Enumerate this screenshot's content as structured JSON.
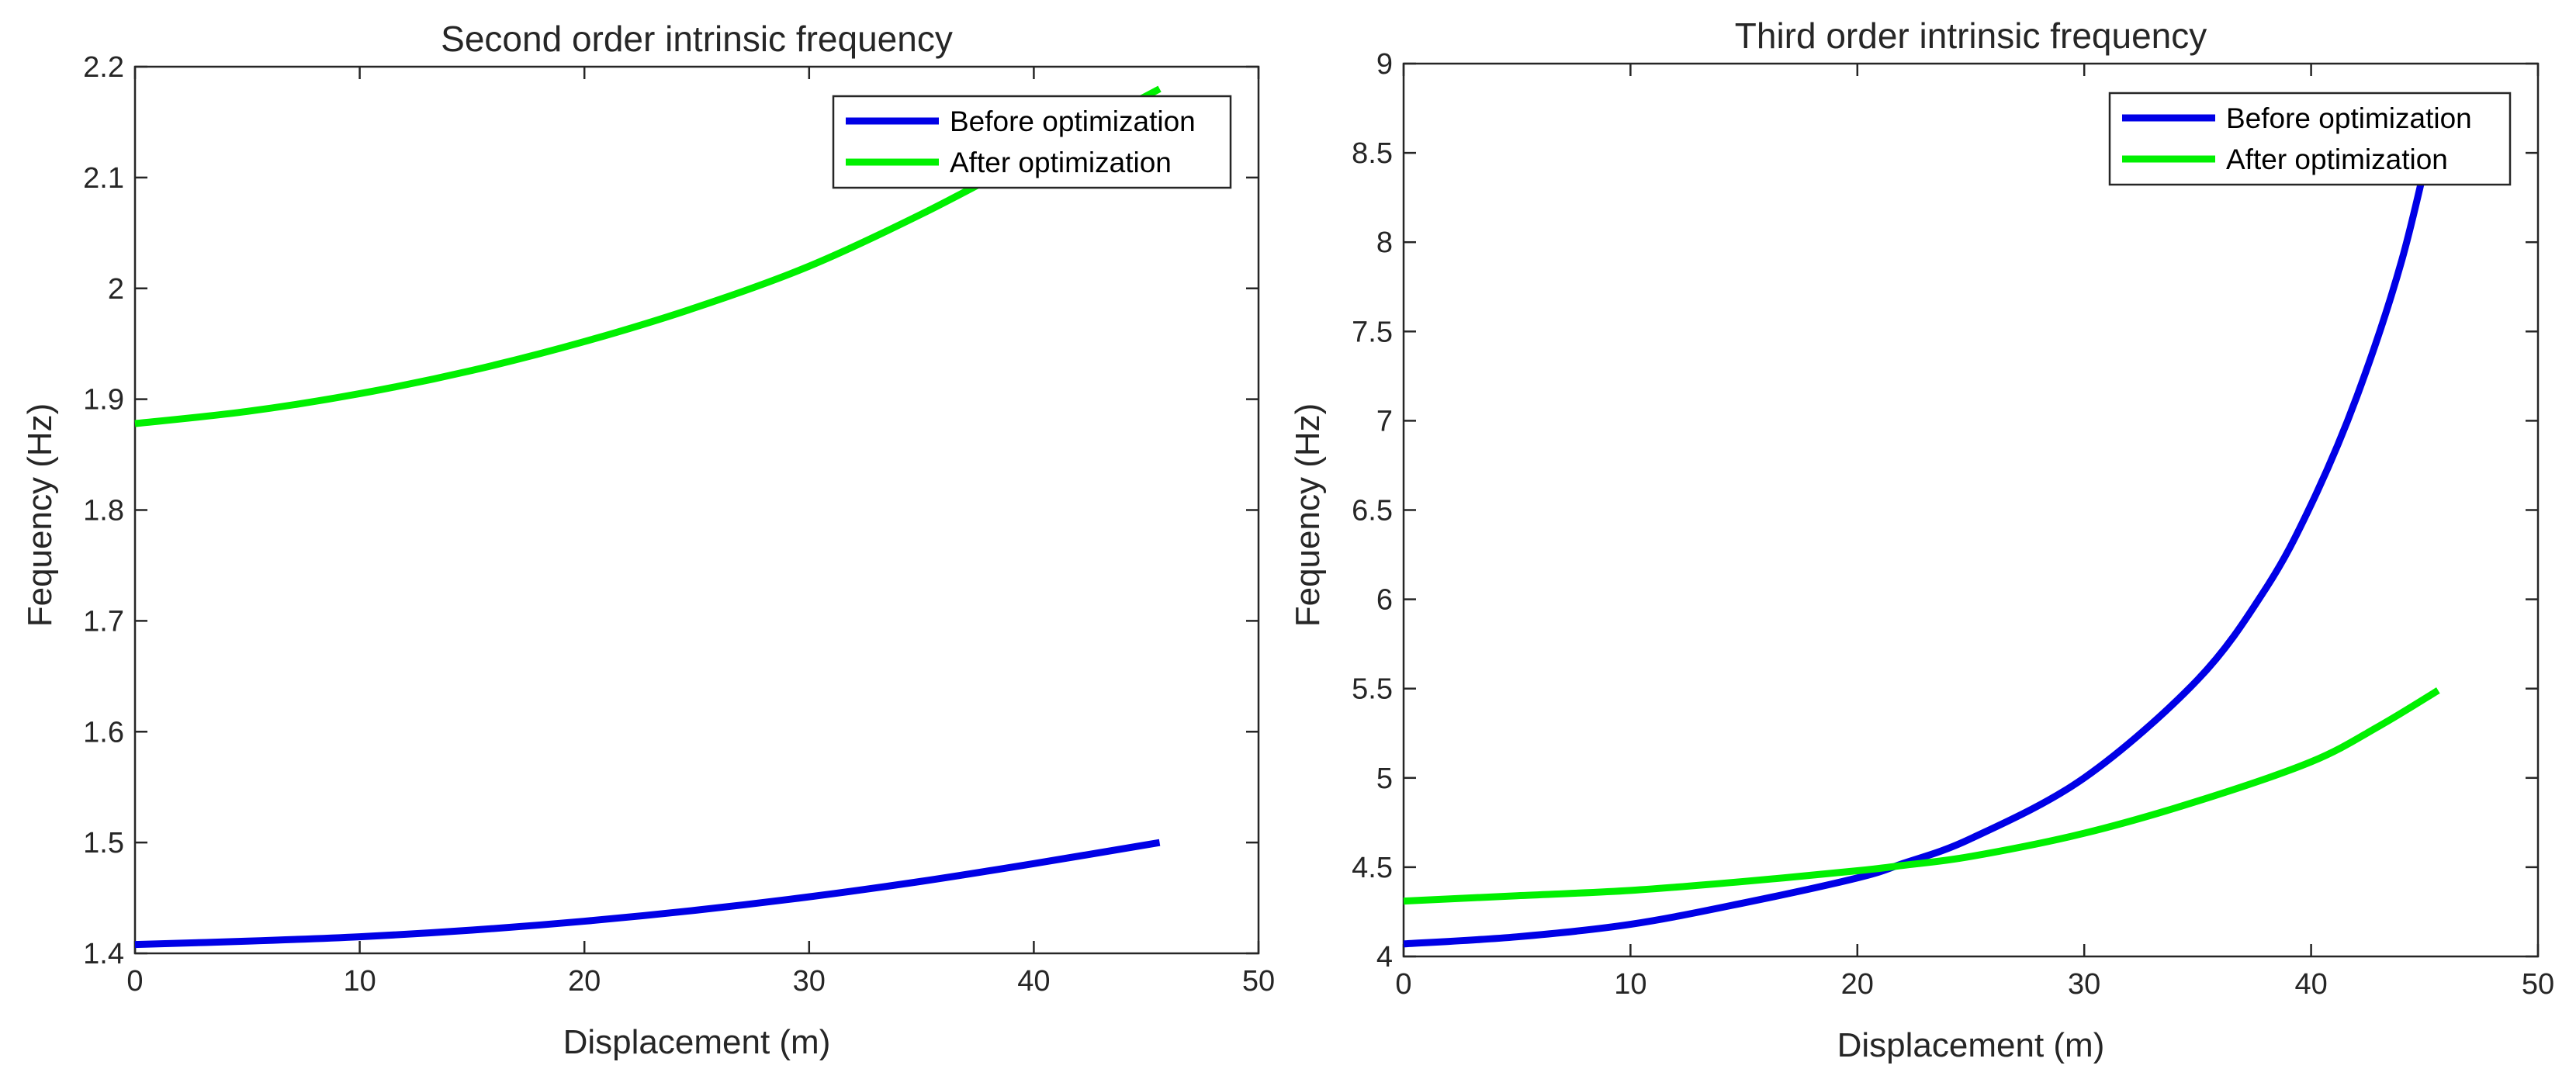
{
  "chart_data": [
    {
      "type": "line",
      "title": "Second order intrinsic frequency",
      "xlabel": "Displacement (m)",
      "ylabel": "Fequency (Hz)",
      "xlim": [
        0,
        50
      ],
      "ylim": [
        1.4,
        2.2
      ],
      "xticks": [
        "0",
        "10",
        "20",
        "30",
        "40",
        "50"
      ],
      "yticks": [
        "1.4",
        "1.5",
        "1.6",
        "1.7",
        "1.8",
        "1.9",
        "2",
        "2.1",
        "2.2"
      ],
      "legend_position": "top-right",
      "series": [
        {
          "name": "Before optimization",
          "color": "#0000e6",
          "x": [
            0,
            5,
            10,
            15,
            20,
            25,
            30,
            35,
            40,
            45.6
          ],
          "y": [
            1.408,
            1.411,
            1.415,
            1.421,
            1.429,
            1.439,
            1.451,
            1.465,
            1.481,
            1.5
          ]
        },
        {
          "name": "After optimization",
          "color": "#00f000",
          "x": [
            0,
            5,
            10,
            15,
            20,
            25,
            30,
            35,
            40,
            45.6
          ],
          "y": [
            1.878,
            1.889,
            1.905,
            1.926,
            1.952,
            1.983,
            2.02,
            2.067,
            2.12,
            2.18
          ]
        }
      ]
    },
    {
      "type": "line",
      "title": "Third order intrinsic frequency",
      "xlabel": "Displacement (m)",
      "ylabel": "Fequency (Hz)",
      "xlim": [
        0,
        50
      ],
      "ylim": [
        4,
        9
      ],
      "xticks": [
        "0",
        "10",
        "20",
        "30",
        "40",
        "50"
      ],
      "yticks": [
        "4",
        "4.5",
        "5",
        "5.5",
        "6",
        "6.5",
        "7",
        "7.5",
        "8",
        "8.5",
        "9"
      ],
      "legend_position": "top-right",
      "series": [
        {
          "name": "Before optimization",
          "color": "#0000e6",
          "x": [
            0,
            5,
            10,
            15,
            20,
            22,
            25,
            30,
            35,
            38,
            40,
            42,
            44,
            45.6
          ],
          "y": [
            4.07,
            4.11,
            4.18,
            4.3,
            4.44,
            4.52,
            4.66,
            5.0,
            5.55,
            6.06,
            6.53,
            7.13,
            7.9,
            8.75
          ]
        },
        {
          "name": "After optimization",
          "color": "#00f000",
          "x": [
            0,
            5,
            10,
            15,
            20,
            22,
            25,
            30,
            35,
            40,
            43,
            45.6
          ],
          "y": [
            4.31,
            4.34,
            4.37,
            4.42,
            4.48,
            4.51,
            4.56,
            4.69,
            4.87,
            5.09,
            5.29,
            5.49
          ]
        }
      ]
    }
  ]
}
